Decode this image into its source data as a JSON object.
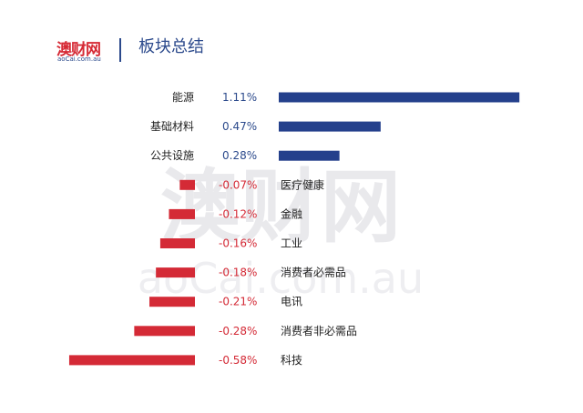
{
  "header": {
    "logo_text": "澳财网",
    "logo_sub": "aoCai.com.au",
    "title": "板块总结"
  },
  "watermark": {
    "text_main": "澳财网",
    "text_sub": "aoCai.com.au"
  },
  "colors": {
    "positive": "#24408c",
    "negative": "#d42a36",
    "positive_text": "#2c4a8c",
    "negative_text": "#d42a36"
  },
  "chart_data": {
    "type": "bar",
    "orientation": "horizontal",
    "title": "板块总结",
    "xlabel": "",
    "ylabel": "",
    "unit": "%",
    "grid": false,
    "categories": [
      "能源",
      "基础材料",
      "公共设施",
      "医疗健康",
      "金融",
      "工业",
      "消费者必需品",
      "电讯",
      "消费者非必需品",
      "科技"
    ],
    "values": [
      1.11,
      0.47,
      0.28,
      -0.07,
      -0.12,
      -0.16,
      -0.18,
      -0.21,
      -0.28,
      -0.58
    ],
    "value_labels": [
      "1.11%",
      "0.47%",
      "0.28%",
      "-0.07%",
      "-0.12%",
      "-0.16%",
      "-0.18%",
      "-0.21%",
      "-0.28%",
      "-0.58%"
    ]
  }
}
